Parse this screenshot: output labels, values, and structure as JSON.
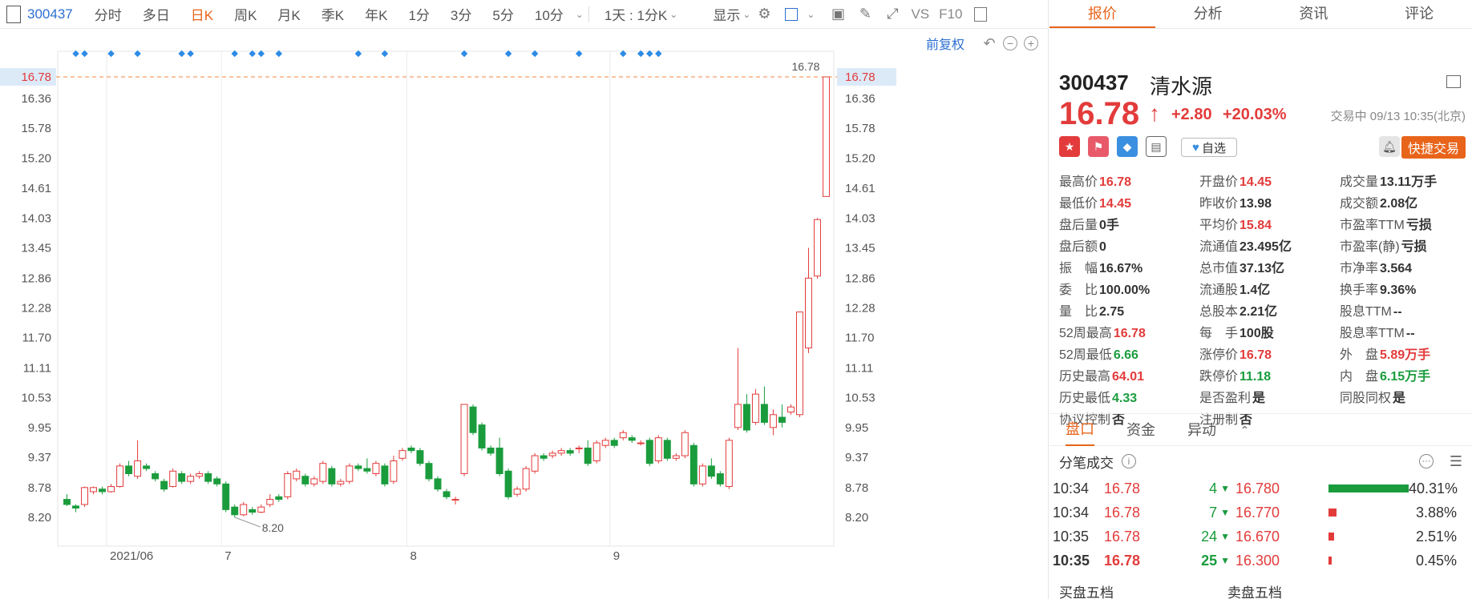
{
  "toolbar": {
    "code": "300437",
    "periods": [
      "分时",
      "多日",
      "日K",
      "周K",
      "月K",
      "季K",
      "年K",
      "1分",
      "3分",
      "5分",
      "10分"
    ],
    "active_period": "日K",
    "interval_select": "1天 : 1分K",
    "display_label": "显示",
    "vs_label": "VS",
    "f10_label": "F10"
  },
  "subbar": {
    "fuquan": "前复权"
  },
  "chart_data": {
    "type": "candlestick",
    "y_ticks": [
      8.2,
      8.78,
      9.37,
      9.95,
      10.53,
      11.11,
      11.7,
      12.28,
      12.86,
      13.45,
      14.03,
      14.61,
      15.2,
      15.78,
      16.36,
      16.78
    ],
    "y_range": [
      8.2,
      16.78
    ],
    "x_ticks": [
      {
        "label": "2021/06",
        "index": 5
      },
      {
        "label": "7",
        "index": 18
      },
      {
        "label": "8",
        "index": 39
      },
      {
        "label": "9",
        "index": 62
      }
    ],
    "current_price": 16.78,
    "max_label": "16.78",
    "min_label": "8.20",
    "markers": [
      1,
      2,
      5,
      8,
      13,
      14,
      19,
      21,
      22,
      24,
      33,
      36,
      45,
      50,
      53,
      58,
      63,
      65,
      66,
      67
    ],
    "candles": [
      [
        8.55,
        8.45,
        8.65,
        8.42
      ],
      [
        8.42,
        8.38,
        8.45,
        8.3
      ],
      [
        8.45,
        8.78,
        8.8,
        8.4
      ],
      [
        8.7,
        8.78,
        8.8,
        8.65
      ],
      [
        8.75,
        8.7,
        8.8,
        8.65
      ],
      [
        8.7,
        8.8,
        8.85,
        8.68
      ],
      [
        8.8,
        9.2,
        9.25,
        8.78
      ],
      [
        9.2,
        9.05,
        9.3,
        9.0
      ],
      [
        9.0,
        9.3,
        9.7,
        8.95
      ],
      [
        9.2,
        9.15,
        9.25,
        9.1
      ],
      [
        9.05,
        8.95,
        9.1,
        8.9
      ],
      [
        8.9,
        8.75,
        8.95,
        8.7
      ],
      [
        8.8,
        9.1,
        9.15,
        8.78
      ],
      [
        9.05,
        8.9,
        9.1,
        8.85
      ],
      [
        8.9,
        9.0,
        9.05,
        8.85
      ],
      [
        9.0,
        9.05,
        9.1,
        8.95
      ],
      [
        9.05,
        8.9,
        9.1,
        8.85
      ],
      [
        8.95,
        8.85,
        9.0,
        8.8
      ],
      [
        8.85,
        8.35,
        8.9,
        8.3
      ],
      [
        8.4,
        8.25,
        8.45,
        8.2
      ],
      [
        8.25,
        8.45,
        8.5,
        8.22
      ],
      [
        8.35,
        8.3,
        8.4,
        8.25
      ],
      [
        8.3,
        8.4,
        8.45,
        8.28
      ],
      [
        8.45,
        8.55,
        8.65,
        8.4
      ],
      [
        8.6,
        8.55,
        8.65,
        8.5
      ],
      [
        8.6,
        9.05,
        9.1,
        8.55
      ],
      [
        8.95,
        9.1,
        9.15,
        8.9
      ],
      [
        9.0,
        8.85,
        9.05,
        8.8
      ],
      [
        8.85,
        8.95,
        9.0,
        8.8
      ],
      [
        8.9,
        9.25,
        9.3,
        8.85
      ],
      [
        9.15,
        8.85,
        9.2,
        8.8
      ],
      [
        8.85,
        8.9,
        8.95,
        8.8
      ],
      [
        8.9,
        9.2,
        9.25,
        8.85
      ],
      [
        9.2,
        9.15,
        9.25,
        9.1
      ],
      [
        9.15,
        9.1,
        9.35,
        9.05
      ],
      [
        9.05,
        9.25,
        9.3,
        9.0
      ],
      [
        9.2,
        8.85,
        9.25,
        8.8
      ],
      [
        8.9,
        9.3,
        9.4,
        8.85
      ],
      [
        9.35,
        9.5,
        9.55,
        9.3
      ],
      [
        9.55,
        9.5,
        9.6,
        9.45
      ],
      [
        9.5,
        9.25,
        9.55,
        9.2
      ],
      [
        9.25,
        8.95,
        9.3,
        8.9
      ],
      [
        8.95,
        8.75,
        9.0,
        8.7
      ],
      [
        8.7,
        8.6,
        8.75,
        8.55
      ],
      [
        8.55,
        8.55,
        8.6,
        8.45
      ],
      [
        9.05,
        10.4,
        10.4,
        9.0
      ],
      [
        10.35,
        9.85,
        10.4,
        9.8
      ],
      [
        10.0,
        9.55,
        10.05,
        9.5
      ],
      [
        9.55,
        9.45,
        9.6,
        9.4
      ],
      [
        9.55,
        9.05,
        9.75,
        9.0
      ],
      [
        9.1,
        8.6,
        9.15,
        8.55
      ],
      [
        8.65,
        8.75,
        8.8,
        8.6
      ],
      [
        8.75,
        9.15,
        9.2,
        8.7
      ],
      [
        9.1,
        9.4,
        9.45,
        9.05
      ],
      [
        9.4,
        9.35,
        9.45,
        9.3
      ],
      [
        9.4,
        9.45,
        9.5,
        9.35
      ],
      [
        9.45,
        9.5,
        9.55,
        9.4
      ],
      [
        9.5,
        9.45,
        9.55,
        9.4
      ],
      [
        9.55,
        9.55,
        9.6,
        9.45
      ],
      [
        9.55,
        9.25,
        9.7,
        9.2
      ],
      [
        9.3,
        9.65,
        9.7,
        9.25
      ],
      [
        9.6,
        9.7,
        9.75,
        9.55
      ],
      [
        9.7,
        9.6,
        9.75,
        9.55
      ],
      [
        9.75,
        9.85,
        9.9,
        9.7
      ],
      [
        9.75,
        9.7,
        9.8,
        9.65
      ],
      [
        9.65,
        9.65,
        9.7,
        9.6
      ],
      [
        9.7,
        9.25,
        9.75,
        9.2
      ],
      [
        9.3,
        9.75,
        9.8,
        9.25
      ],
      [
        9.7,
        9.35,
        9.75,
        9.3
      ],
      [
        9.35,
        9.4,
        9.45,
        9.3
      ],
      [
        9.4,
        9.85,
        9.9,
        9.35
      ],
      [
        9.6,
        8.85,
        9.65,
        8.8
      ],
      [
        8.85,
        9.2,
        9.25,
        8.8
      ],
      [
        9.2,
        9.0,
        9.35,
        8.95
      ],
      [
        9.05,
        8.85,
        9.1,
        8.8
      ],
      [
        8.8,
        9.7,
        9.75,
        8.75
      ],
      [
        9.95,
        10.4,
        11.5,
        9.9
      ],
      [
        10.4,
        9.9,
        10.6,
        9.85
      ],
      [
        10.05,
        10.6,
        10.7,
        10.0
      ],
      [
        10.4,
        10.05,
        10.75,
        10.0
      ],
      [
        9.95,
        10.2,
        10.3,
        9.8
      ],
      [
        10.15,
        10.05,
        10.4,
        9.95
      ],
      [
        10.25,
        10.35,
        10.4,
        10.2
      ],
      [
        10.2,
        12.2,
        12.2,
        10.15
      ],
      [
        11.5,
        12.86,
        13.45,
        11.4
      ],
      [
        12.9,
        14.0,
        14.03,
        12.85
      ],
      [
        14.45,
        16.78,
        16.78,
        14.45
      ]
    ]
  },
  "tabs": [
    "报价",
    "分析",
    "资讯",
    "评论"
  ],
  "active_tab": "报价",
  "quote": {
    "code": "300437",
    "name": "清水源",
    "price": "16.78",
    "change": "+2.80",
    "pct": "+20.03%",
    "status": "交易中 09/13 10:35(北京)",
    "watch_label": "自选",
    "quick_trade": "快捷交易"
  },
  "stats": [
    [
      {
        "l": "最高价",
        "v": "16.78",
        "c": "up"
      },
      {
        "l": "开盘价",
        "v": "14.45",
        "c": "up"
      },
      {
        "l": "成交量",
        "v": "13.11万手",
        "c": ""
      }
    ],
    [
      {
        "l": "最低价",
        "v": "14.45",
        "c": "up"
      },
      {
        "l": "昨收价",
        "v": "13.98",
        "c": ""
      },
      {
        "l": "成交额",
        "v": "2.08亿",
        "c": ""
      }
    ],
    [
      {
        "l": "盘后量",
        "v": "0手",
        "c": ""
      },
      {
        "l": "平均价",
        "v": "15.84",
        "c": "up"
      },
      {
        "l": "市盈率TTM",
        "v": "亏损",
        "c": ""
      }
    ],
    [
      {
        "l": "盘后额",
        "v": "0",
        "c": ""
      },
      {
        "l": "流通值",
        "v": "23.495亿",
        "c": ""
      },
      {
        "l": "市盈率(静)",
        "v": "亏损",
        "c": ""
      }
    ],
    [
      {
        "l": "振　幅",
        "v": "16.67%",
        "c": ""
      },
      {
        "l": "总市值",
        "v": "37.13亿",
        "c": ""
      },
      {
        "l": "市净率",
        "v": "3.564",
        "c": ""
      }
    ],
    [
      {
        "l": "委　比",
        "v": "100.00%",
        "c": ""
      },
      {
        "l": "流通股",
        "v": "1.4亿",
        "c": ""
      },
      {
        "l": "换手率",
        "v": "9.36%",
        "c": ""
      }
    ],
    [
      {
        "l": "量　比",
        "v": "2.75",
        "c": ""
      },
      {
        "l": "总股本",
        "v": "2.21亿",
        "c": ""
      },
      {
        "l": "股息TTM",
        "v": "--",
        "c": ""
      }
    ],
    [
      {
        "l": "52周最高",
        "v": "16.78",
        "c": "up"
      },
      {
        "l": "每　手",
        "v": "100股",
        "c": ""
      },
      {
        "l": "股息率TTM",
        "v": "--",
        "c": ""
      }
    ],
    [
      {
        "l": "52周最低",
        "v": "6.66",
        "c": "down"
      },
      {
        "l": "涨停价",
        "v": "16.78",
        "c": "up"
      },
      {
        "l": "外　盘",
        "v": "5.89万手",
        "c": "up"
      }
    ],
    [
      {
        "l": "历史最高",
        "v": "64.01",
        "c": "up"
      },
      {
        "l": "跌停价",
        "v": "11.18",
        "c": "down"
      },
      {
        "l": "内　盘",
        "v": "6.15万手",
        "c": "down"
      }
    ],
    [
      {
        "l": "历史最低",
        "v": "4.33",
        "c": "down"
      },
      {
        "l": "是否盈利",
        "v": "是",
        "c": ""
      },
      {
        "l": "同股同权",
        "v": "是",
        "c": ""
      }
    ],
    [
      {
        "l": "协议控制",
        "v": "否",
        "c": ""
      },
      {
        "l": "注册制",
        "v": "否",
        "c": ""
      },
      {
        "l": "",
        "v": "",
        "c": ""
      }
    ]
  ],
  "subtabs": [
    "盘口",
    "资金",
    "异动"
  ],
  "trades_title": "分笔成交",
  "trades": [
    {
      "time": "10:34",
      "price": "16.78",
      "vol": "4"
    },
    {
      "time": "10:34",
      "price": "16.78",
      "vol": "7"
    },
    {
      "time": "10:35",
      "price": "16.78",
      "vol": "24"
    },
    {
      "time": "10:35",
      "price": "16.78",
      "vol": "25"
    }
  ],
  "depth": [
    {
      "price": "16.780",
      "pct": "40.31%",
      "ratio": 0.4031
    },
    {
      "price": "16.770",
      "pct": "3.88%",
      "ratio": 0.0388
    },
    {
      "price": "16.670",
      "pct": "2.51%",
      "ratio": 0.0251
    },
    {
      "price": "16.300",
      "pct": "0.45%",
      "ratio": 0.0045
    }
  ],
  "bottom": {
    "buy5": "买盘五档",
    "sell5": "卖盘五档"
  },
  "colors": {
    "up": "#e33b3b",
    "down": "#1a9c3d",
    "accent": "#e8641b",
    "link": "#2d6fd1",
    "marker": "#2b8be6"
  }
}
